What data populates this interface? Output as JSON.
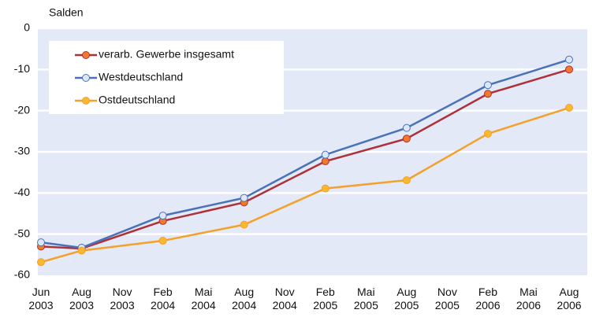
{
  "chart_data": {
    "type": "line",
    "y_label": "Salden",
    "categories": [
      "Jun 2003",
      "Aug 2003",
      "Nov 2003",
      "Feb 2004",
      "Mai 2004",
      "Aug 2004",
      "Nov 2004",
      "Feb 2005",
      "Mai 2005",
      "Aug 2005",
      "Nov 2005",
      "Feb 2006",
      "Mai 2006",
      "Aug 2006"
    ],
    "x": [
      "Jun 2003",
      "Aug 2003",
      "Feb 2004",
      "Aug 2004",
      "Feb 2005",
      "Aug 2005",
      "Feb 2006",
      "Aug 2006"
    ],
    "series": [
      {
        "name": "verarb. Gewerbe insgesamt",
        "color": "#b03038",
        "marker_color": "#f07a2a",
        "values": [
          -53,
          -53.5,
          -46.8,
          -42.3,
          -32.3,
          -26.8,
          -15.9,
          -10
        ]
      },
      {
        "name": "Westdeutschland",
        "color": "#4a72b8",
        "marker_color": "#dde6f5",
        "values": [
          -52,
          -53.3,
          -45.5,
          -41.2,
          -30.7,
          -24.2,
          -13.8,
          -7.6
        ]
      },
      {
        "name": "Ostdeutschland",
        "color": "#f5a02a",
        "marker_color": "#f8b830",
        "values": [
          -56.8,
          -54,
          -51.6,
          -47.7,
          -38.9,
          -36.9,
          -25.6,
          -19.3
        ]
      }
    ],
    "ylim": [
      -60,
      0
    ],
    "yticks": [
      0,
      -10,
      -20,
      -30,
      -40,
      -50,
      -60
    ],
    "grid": true,
    "legend": "top-left"
  }
}
